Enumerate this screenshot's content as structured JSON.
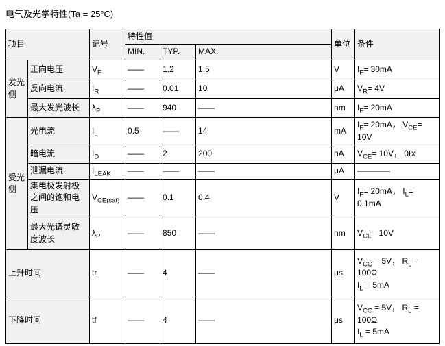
{
  "title": "电气及光学特性(Ta = 25°C)",
  "colors": {
    "header_bg": "#f1f1f1",
    "border": "#000000",
    "text": "#000000",
    "page_bg": "#ffffff"
  },
  "table": {
    "headers": {
      "item": "项目",
      "symbol": "记号",
      "value_group": "特性值",
      "min": "MIN.",
      "typ": "TYP.",
      "max": "MAX.",
      "unit": "单位",
      "condition": "条件"
    },
    "groups": [
      {
        "label": "发光侧"
      },
      {
        "label": "受光侧"
      }
    ],
    "rows": [
      {
        "item": "正向电压",
        "symbol": "V~F~",
        "min": "——",
        "typ": "1.2",
        "max": "1.5",
        "unit": "V",
        "condition": "I~F~= 30mA"
      },
      {
        "item": "反向电流",
        "symbol": "I~R~",
        "min": "——",
        "typ": "0.01",
        "max": "10",
        "unit": "μA",
        "condition": "V~R~= 4V"
      },
      {
        "item": "最大发光波长",
        "symbol": "λ~P~",
        "min": "——",
        "typ": "940",
        "max": "——",
        "unit": "nm",
        "condition": "I~F~= 20mA"
      },
      {
        "item": "光电流",
        "symbol": "I~L~",
        "min": "0.5",
        "typ": "——",
        "max": "14",
        "unit": "mA",
        "condition": "I~F~= 20mA， V~CE~=\n10V"
      },
      {
        "item": "暗电流",
        "symbol": "I~D~",
        "min": "——",
        "typ": "2",
        "max": "200",
        "unit": "nA",
        "condition": "V~CE~= 10V， 0ℓx"
      },
      {
        "item": "泄漏电流",
        "symbol": "I~LEAK~",
        "min": "——",
        "typ": "——",
        "max": "——",
        "unit": "μA",
        "condition": "————"
      },
      {
        "item": "集电极发射极之间的饱和电压",
        "symbol": "V~CE(sat)~",
        "min": "——",
        "typ": "0.1",
        "max": "0.4",
        "unit": "V",
        "condition": "I~F~= 20mA， I~L~=\n0.1mA"
      },
      {
        "item": "最大光谱灵敏度波长",
        "symbol": "λ~P~",
        "min": "——",
        "typ": "850",
        "max": "——",
        "unit": "nm",
        "condition": "V~CE~= 10V"
      },
      {
        "item": "上升时间",
        "symbol": "tr",
        "min": "——",
        "typ": "4",
        "max": "——",
        "unit": "μs",
        "condition": "V~CC~ = 5V， R~L~ =\n100Ω\nI~L~ = 5mA"
      },
      {
        "item": "下降时间",
        "symbol": "tf",
        "min": "——",
        "typ": "4",
        "max": "——",
        "unit": "μs",
        "condition": "V~CC~ = 5V， R~L~ =\n100Ω\nI~L~ = 5mA"
      }
    ]
  }
}
